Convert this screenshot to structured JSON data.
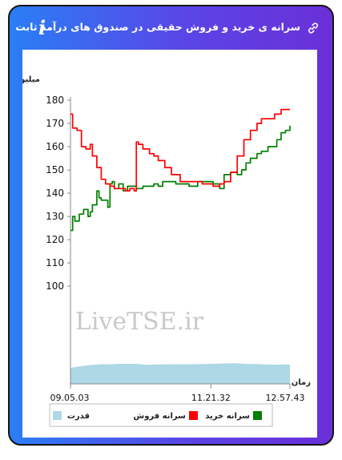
{
  "header": {
    "title": "سرانه ی خرید و فروش حقیقی در صندوق های درآمد ثابت",
    "info_icon": "i"
  },
  "chart_data": {
    "type": "line",
    "ylabel": "میلیون تومان",
    "xlabel": "زمان",
    "y_ticks": [
      100,
      110,
      120,
      130,
      140,
      150,
      160,
      170,
      180
    ],
    "ylim": [
      100,
      180
    ],
    "x_ticks": [
      "09.05.03",
      "11.21.32",
      "12.57.43"
    ],
    "watermark": "LiveTSE.ir",
    "grid": false,
    "legend_placement": "bottom",
    "series": [
      {
        "name": "سرانه خرید",
        "color": "#008000",
        "x": [
          0,
          0.01,
          0.02,
          0.04,
          0.06,
          0.08,
          0.09,
          0.1,
          0.12,
          0.13,
          0.14,
          0.17,
          0.18,
          0.19,
          0.2,
          0.22,
          0.24,
          0.26,
          0.28,
          0.3,
          0.33,
          0.36,
          0.38,
          0.4,
          0.42,
          0.45,
          0.48,
          0.5,
          0.54,
          0.58,
          0.62,
          0.65,
          0.68,
          0.7,
          0.73,
          0.76,
          0.78,
          0.8,
          0.82,
          0.85,
          0.87,
          0.9,
          0.94,
          0.96,
          0.98,
          1.0
        ],
        "values": [
          124,
          130,
          128,
          131,
          133,
          130,
          132,
          135,
          141,
          138,
          137,
          134,
          144,
          145,
          142,
          144,
          141,
          143,
          143,
          142,
          143,
          143,
          144,
          143,
          145,
          145,
          144,
          144,
          143,
          145,
          145,
          144,
          142,
          148,
          149,
          148,
          150,
          153,
          155,
          157,
          158,
          160,
          163,
          166,
          167,
          169
        ]
      },
      {
        "name": "سرانه فروش",
        "color": "#ff0000",
        "x": [
          0,
          0.01,
          0.03,
          0.05,
          0.07,
          0.09,
          0.1,
          0.12,
          0.14,
          0.16,
          0.18,
          0.2,
          0.22,
          0.25,
          0.27,
          0.29,
          0.3,
          0.31,
          0.33,
          0.36,
          0.38,
          0.4,
          0.43,
          0.46,
          0.5,
          0.55,
          0.6,
          0.65,
          0.68,
          0.7,
          0.73,
          0.76,
          0.79,
          0.82,
          0.85,
          0.87,
          0.9,
          0.93,
          0.96,
          0.98,
          1.0
        ],
        "values": [
          174,
          168,
          167,
          160,
          159,
          161,
          156,
          151,
          146,
          144,
          143,
          142,
          142,
          141,
          142,
          141,
          162,
          161,
          159,
          157,
          156,
          154,
          151,
          148,
          145,
          145,
          144,
          143,
          144,
          145,
          149,
          156,
          163,
          167,
          170,
          172,
          172,
          174,
          176,
          176,
          176
        ]
      },
      {
        "name": "قدرت",
        "color": "#add8e6",
        "x": [
          0,
          0.03,
          0.06,
          0.1,
          0.14,
          0.18,
          0.22,
          0.26,
          0.3,
          0.35,
          0.4,
          0.45,
          0.5,
          0.55,
          0.6,
          0.65,
          0.7,
          0.75,
          0.8,
          0.85,
          0.9,
          0.95,
          1.0
        ],
        "values": [
          0.8,
          0.85,
          0.9,
          0.95,
          0.98,
          0.98,
          1.0,
          1.0,
          1.0,
          0.95,
          0.97,
          0.98,
          0.98,
          0.98,
          0.99,
          1.0,
          1.02,
          1.03,
          1.0,
          0.99,
          0.97,
          0.96,
          0.97
        ]
      }
    ]
  }
}
